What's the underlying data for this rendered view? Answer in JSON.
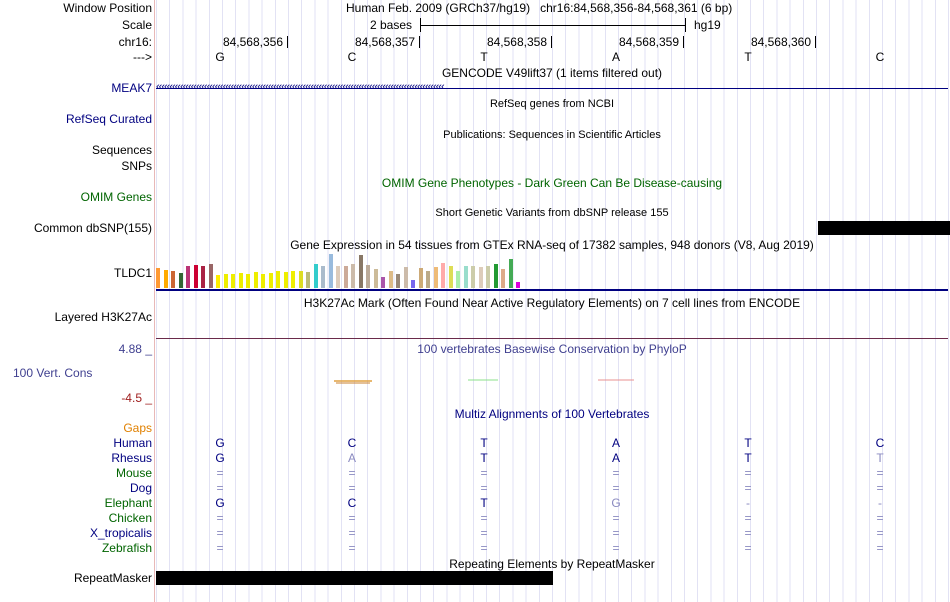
{
  "header": {
    "window_position_label": "Window Position",
    "scale_label": "Scale",
    "chrom_label": "chr16:",
    "strand_label": "--->",
    "assembly_text": "Human Feb. 2009 (GRCh37/hg19)   chr16:84,568,356-84,568,361 (6 bp)",
    "scale_text": "2 bases",
    "scale_db": "hg19",
    "coordinates": [
      "84,568,356",
      "84,568,357",
      "84,568,358",
      "84,568,359",
      "84,568,360"
    ],
    "sequence": [
      "G",
      "C",
      "T",
      "A",
      "T",
      "C"
    ]
  },
  "tracks": {
    "gencode": {
      "title": "GENCODE V49lift37 (1 items filtered out)",
      "gene": "MEAK7",
      "strand_glyphs": "‹‹‹‹‹‹‹‹‹‹‹‹‹‹‹‹‹‹‹‹‹‹‹‹‹‹‹‹‹‹‹‹‹‹‹‹‹‹‹‹‹‹‹‹‹‹‹‹‹‹‹‹‹‹‹‹‹‹‹‹‹‹‹‹‹‹‹‹‹‹‹‹‹‹‹‹‹‹‹‹‹‹‹‹‹‹‹‹‹‹‹‹‹‹‹‹‹‹‹‹‹‹‹‹‹‹‹‹"
    },
    "refseq": {
      "title": "RefSeq genes from NCBI",
      "label": "RefSeq Curated"
    },
    "publications": {
      "title": "Publications: Sequences in Scientific Articles",
      "label": "Sequences"
    },
    "snps_label": "SNPs",
    "omim": {
      "title": "OMIM Gene Phenotypes - Dark Green Can Be Disease-causing",
      "label": "OMIM Genes"
    },
    "dbsnp": {
      "title": "Short Genetic Variants from dbSNP release 155",
      "label": "Common dbSNP(155)"
    },
    "gtex": {
      "title": "Gene Expression in 54 tissues from GTEx RNA-seq of 17382 samples, 948 donors (V8, Aug 2019)",
      "gene": "TLDC1",
      "bars": [
        {
          "value": 0.55,
          "color": "#ff9933"
        },
        {
          "value": 0.5,
          "color": "#ffaa00"
        },
        {
          "value": 0.48,
          "color": "#cc6633"
        },
        {
          "value": 0.42,
          "color": "#336633"
        },
        {
          "value": 0.62,
          "color": "#bb3377"
        },
        {
          "value": 0.65,
          "color": "#cc0033"
        },
        {
          "value": 0.6,
          "color": "#aa2244"
        },
        {
          "value": 0.68,
          "color": "#996666"
        },
        {
          "value": 0.35,
          "color": "#ffee00"
        },
        {
          "value": 0.38,
          "color": "#eeee00"
        },
        {
          "value": 0.4,
          "color": "#eeee00"
        },
        {
          "value": 0.42,
          "color": "#eeee00"
        },
        {
          "value": 0.38,
          "color": "#eeee00"
        },
        {
          "value": 0.45,
          "color": "#eeee00"
        },
        {
          "value": 0.4,
          "color": "#eeee00"
        },
        {
          "value": 0.42,
          "color": "#eeee00"
        },
        {
          "value": 0.48,
          "color": "#eeee00"
        },
        {
          "value": 0.44,
          "color": "#eeee00"
        },
        {
          "value": 0.46,
          "color": "#eeee00"
        },
        {
          "value": 0.48,
          "color": "#dddd22"
        },
        {
          "value": 0.45,
          "color": "#bbbb77"
        },
        {
          "value": 0.66,
          "color": "#33cccc"
        },
        {
          "value": 0.6,
          "color": "#aabbcc"
        },
        {
          "value": 0.95,
          "color": "#99bbdd"
        },
        {
          "value": 0.6,
          "color": "#ddccbb"
        },
        {
          "value": 0.62,
          "color": "#ccaa99"
        },
        {
          "value": 0.68,
          "color": "#ccbbaa"
        },
        {
          "value": 0.92,
          "color": "#887766"
        },
        {
          "value": 0.64,
          "color": "#bbaa99"
        },
        {
          "value": 0.52,
          "color": "#ccbb99"
        },
        {
          "value": 0.3,
          "color": "#aa55aa"
        },
        {
          "value": 0.46,
          "color": "#ddbb88"
        },
        {
          "value": 0.38,
          "color": "#998877"
        },
        {
          "value": 0.58,
          "color": "#ccbbaa"
        },
        {
          "value": 0.22,
          "color": "#7766ee"
        },
        {
          "value": 0.56,
          "color": "#ccaa77"
        },
        {
          "value": 0.48,
          "color": "#bbaa88"
        },
        {
          "value": 0.58,
          "color": "#eebb77"
        },
        {
          "value": 0.7,
          "color": "#ffaaaa"
        },
        {
          "value": 0.62,
          "color": "#dddd55"
        },
        {
          "value": 0.46,
          "color": "#aaeeaa"
        },
        {
          "value": 0.6,
          "color": "#99ddcc"
        },
        {
          "value": 0.6,
          "color": "#ccccaa"
        },
        {
          "value": 0.58,
          "color": "#ddccbb"
        },
        {
          "value": 0.6,
          "color": "#ccccaa"
        },
        {
          "value": 0.66,
          "color": "#229933"
        },
        {
          "value": 0.52,
          "color": "#ddaa88"
        },
        {
          "value": 0.8,
          "color": "#44aa55"
        },
        {
          "value": 0.18,
          "color": "#dd00dd"
        }
      ]
    },
    "h3k27ac": {
      "title": "H3K27Ac Mark (Often Found Near Active Regulatory Elements) on 7 cell lines from ENCODE",
      "label": "Layered H3K27Ac"
    },
    "phylop": {
      "title": "100 vertebrates Basewise Conservation by PhyloP",
      "label": "100 Vert. Cons",
      "max": "4.88 _",
      "min": "-4.5 _"
    },
    "multiz": {
      "title": "Multiz Alignments of 100 Vertebrates",
      "gaps_label": "Gaps",
      "species": [
        {
          "name": "Human",
          "bases": [
            "G",
            "C",
            "T",
            "A",
            "T",
            "C"
          ],
          "color": "#000080",
          "shade": [
            "d",
            "d",
            "d",
            "d",
            "d",
            "d"
          ]
        },
        {
          "name": "Rhesus",
          "bases": [
            "G",
            "A",
            "T",
            "A",
            "T",
            "T"
          ],
          "color": "#000080",
          "shade": [
            "d",
            "l",
            "d",
            "d",
            "d",
            "l"
          ]
        },
        {
          "name": "Mouse",
          "bases": [
            "=",
            "=",
            "=",
            "=",
            "=",
            "="
          ],
          "color": "#006400",
          "shade": [
            "l",
            "l",
            "l",
            "l",
            "l",
            "l"
          ]
        },
        {
          "name": "Dog",
          "bases": [
            "=",
            "=",
            "=",
            "=",
            "=",
            "="
          ],
          "color": "#000080",
          "shade": [
            "l",
            "l",
            "l",
            "l",
            "l",
            "l"
          ]
        },
        {
          "name": "Elephant",
          "bases": [
            "G",
            "C",
            "T",
            "G",
            "-",
            "-"
          ],
          "color": "#006400",
          "shade": [
            "d",
            "d",
            "d",
            "l",
            "l",
            "l"
          ]
        },
        {
          "name": "Chicken",
          "bases": [
            "=",
            "=",
            "=",
            "=",
            "=",
            "="
          ],
          "color": "#006400",
          "shade": [
            "l",
            "l",
            "l",
            "l",
            "l",
            "l"
          ]
        },
        {
          "name": "X_tropicalis",
          "bases": [
            "=",
            "=",
            "=",
            "=",
            "=",
            "="
          ],
          "color": "#000080",
          "shade": [
            "l",
            "l",
            "l",
            "l",
            "l",
            "l"
          ]
        },
        {
          "name": "Zebrafish",
          "bases": [
            "=",
            "=",
            "=",
            "=",
            "=",
            "="
          ],
          "color": "#006400",
          "shade": [
            "l",
            "l",
            "l",
            "l",
            "l",
            "l"
          ]
        }
      ]
    },
    "repeatmasker": {
      "title": "Repeating Elements by RepeatMasker",
      "label": "RepeatMasker"
    }
  },
  "colors": {
    "navy": "#000080",
    "green": "#006400",
    "orange": "#e08000",
    "red": "#a02020",
    "purple": "#404090"
  }
}
